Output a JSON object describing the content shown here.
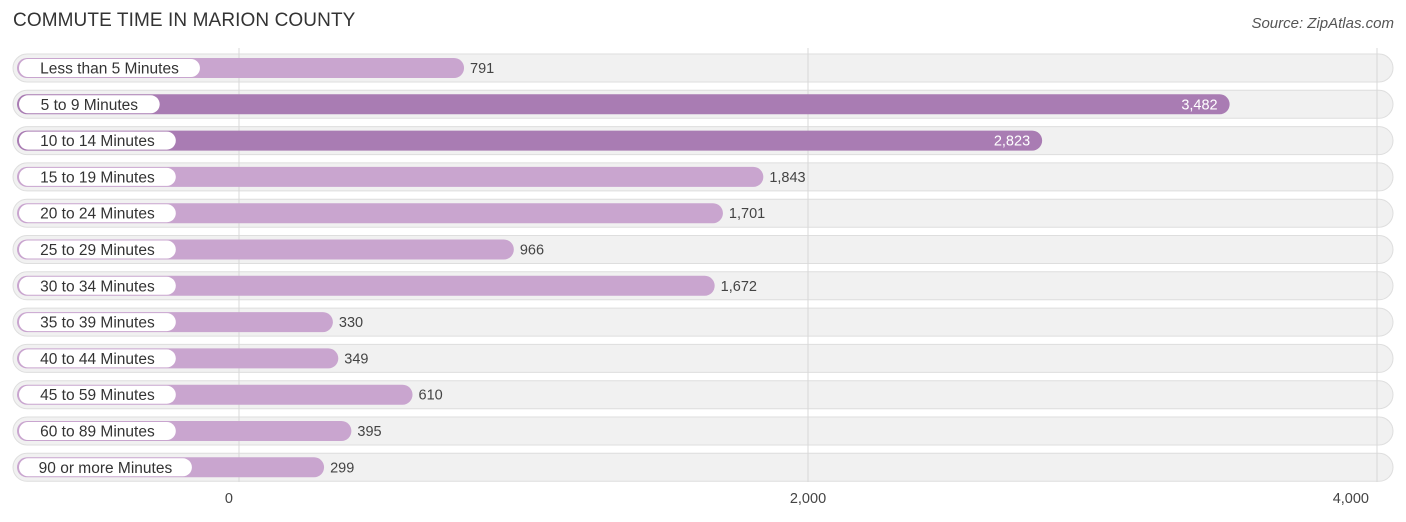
{
  "chart_data": {
    "type": "bar",
    "orientation": "horizontal",
    "title": "COMMUTE TIME IN MARION COUNTY",
    "source": "Source: ZipAtlas.com",
    "categories": [
      "Less than 5 Minutes",
      "5 to 9 Minutes",
      "10 to 14 Minutes",
      "15 to 19 Minutes",
      "20 to 24 Minutes",
      "25 to 29 Minutes",
      "30 to 34 Minutes",
      "35 to 39 Minutes",
      "40 to 44 Minutes",
      "45 to 59 Minutes",
      "60 to 89 Minutes",
      "90 or more Minutes"
    ],
    "values": [
      791,
      3482,
      2823,
      1843,
      1701,
      966,
      1672,
      330,
      349,
      610,
      395,
      299
    ],
    "value_labels": [
      "791",
      "3,482",
      "2,823",
      "1,843",
      "1,701",
      "966",
      "1,672",
      "330",
      "349",
      "610",
      "395",
      "299"
    ],
    "xlim": [
      0,
      4000
    ],
    "x_ticks": [
      0,
      2000,
      4000
    ],
    "x_tick_labels": [
      "0",
      "2,000",
      "4,000"
    ],
    "grid": true,
    "colors": {
      "bar_strong": "#a97cb3",
      "bar_light": "#c9a5cf",
      "row_bg": "#f1f1f1",
      "value_inside": "#ffffff",
      "value_outside": "#444444"
    }
  }
}
